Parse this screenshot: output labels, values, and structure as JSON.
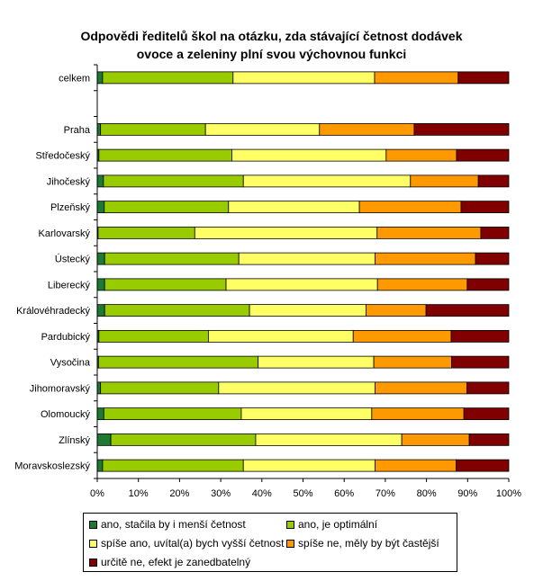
{
  "chart_data": {
    "type": "bar",
    "orientation": "horizontal",
    "stacked": "percent",
    "title_lines": [
      "Odpovědi ředitelů škol na otázku, zda stávající četnost dodávek",
      "ovoce a zeleniny plní svou výchovnou funkci"
    ],
    "categories": [
      "celkem",
      "",
      "Praha",
      "Středočeský",
      "Jihočeský",
      "Plzeňský",
      "Karlovarský",
      "Ústecký",
      "Liberecký",
      "Královéhradecký",
      "Pardubický",
      "Vysočina",
      "Jihomoravský",
      "Olomoucký",
      "Zlínský",
      "Moravskoslezský"
    ],
    "series": [
      {
        "name": "ano, stačila by i menší četnost",
        "color": "#1e7a32",
        "values": [
          1.3,
          null,
          0.8,
          0.4,
          1.5,
          1.7,
          0.2,
          1.8,
          1.8,
          1.8,
          0.4,
          0.3,
          0.8,
          1.6,
          3.3,
          1.3
        ]
      },
      {
        "name": "ano, je optimální",
        "color": "#99cc00",
        "values": [
          31.7,
          null,
          25.5,
          32.3,
          34.0,
          30.2,
          23.5,
          32.6,
          29.5,
          35.2,
          26.6,
          38.8,
          28.7,
          33.4,
          35.2,
          34.2
        ]
      },
      {
        "name": "spíše ano, uvítal(a) bych vyšší četnost",
        "color": "#ffff66",
        "values": [
          34.4,
          null,
          27.7,
          37.5,
          40.6,
          31.8,
          44.3,
          33.1,
          36.8,
          28.3,
          35.2,
          28.1,
          38.0,
          31.7,
          35.5,
          32.0
        ]
      },
      {
        "name": "spíše ne, měly by být častější",
        "color": "#ff9900",
        "values": [
          20.3,
          null,
          23.0,
          17.1,
          16.5,
          24.7,
          25.2,
          24.4,
          21.8,
          14.6,
          23.8,
          18.9,
          22.3,
          22.4,
          16.4,
          19.7
        ]
      },
      {
        "name": "určitě ne, efekt je zanedbatelný",
        "color": "#800000",
        "values": [
          12.3,
          null,
          23.0,
          12.7,
          7.4,
          11.6,
          6.8,
          8.1,
          10.1,
          20.1,
          14.0,
          13.9,
          10.2,
          10.9,
          9.6,
          12.8
        ]
      }
    ],
    "x_ticks": [
      "0%",
      "10%",
      "20%",
      "30%",
      "40%",
      "50%",
      "60%",
      "70%",
      "80%",
      "90%",
      "100%"
    ],
    "xlim": [
      0,
      100
    ],
    "grid": false,
    "legend_position": "bottom"
  }
}
